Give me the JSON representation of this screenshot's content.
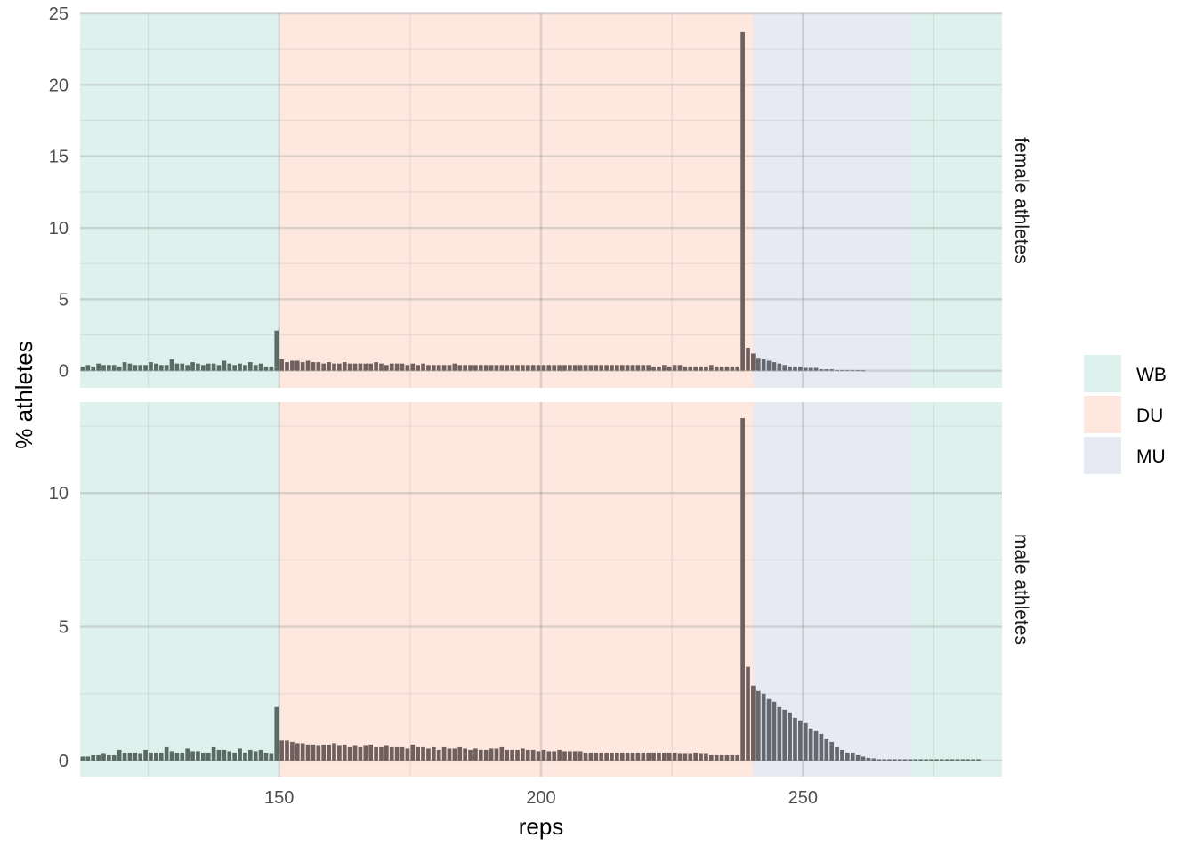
{
  "chart_data": {
    "type": "bar",
    "xlabel": "reps",
    "ylabel": "% athletes",
    "xlim": [
      112,
      288
    ],
    "x_ticks": [
      150,
      200,
      250
    ],
    "grid": true,
    "legend_position": "right",
    "bands": [
      {
        "name": "WB",
        "from": 112,
        "to": 150,
        "color": "#dff1ec"
      },
      {
        "name": "DU",
        "from": 150,
        "to": 240.5,
        "color": "#fde7df"
      },
      {
        "name": "MU",
        "from": 240.5,
        "to": 270.5,
        "color": "#e7eaf3"
      },
      {
        "name": "WB",
        "from": 270.5,
        "to": 288,
        "color": "#dff1ec"
      }
    ],
    "legend": [
      {
        "name": "WB",
        "color": "#dff1ec"
      },
      {
        "name": "DU",
        "color": "#fde7df"
      },
      {
        "name": "MU",
        "color": "#e7eaf3"
      }
    ],
    "bar_colors": {
      "WB": "#5a6b66",
      "DU": "#70605d",
      "MU": "#666870"
    },
    "panels": [
      {
        "label": "female athletes",
        "ylim": [
          -1.2,
          25
        ],
        "y_ticks": [
          0,
          5,
          10,
          15,
          20,
          25
        ],
        "x_start": 112,
        "values": [
          0.3,
          0.4,
          0.3,
          0.5,
          0.4,
          0.4,
          0.4,
          0.3,
          0.6,
          0.5,
          0.4,
          0.4,
          0.4,
          0.6,
          0.5,
          0.4,
          0.4,
          0.8,
          0.5,
          0.5,
          0.4,
          0.6,
          0.5,
          0.4,
          0.5,
          0.5,
          0.4,
          0.7,
          0.5,
          0.4,
          0.5,
          0.4,
          0.6,
          0.4,
          0.5,
          0.3,
          0.3,
          2.8,
          0.8,
          0.6,
          0.7,
          0.7,
          0.6,
          0.7,
          0.6,
          0.6,
          0.5,
          0.6,
          0.5,
          0.5,
          0.6,
          0.5,
          0.5,
          0.5,
          0.5,
          0.5,
          0.6,
          0.5,
          0.4,
          0.5,
          0.5,
          0.5,
          0.4,
          0.5,
          0.4,
          0.5,
          0.4,
          0.4,
          0.4,
          0.4,
          0.4,
          0.5,
          0.4,
          0.4,
          0.4,
          0.4,
          0.4,
          0.4,
          0.4,
          0.4,
          0.4,
          0.4,
          0.4,
          0.4,
          0.4,
          0.4,
          0.4,
          0.4,
          0.4,
          0.4,
          0.4,
          0.4,
          0.4,
          0.4,
          0.4,
          0.4,
          0.4,
          0.4,
          0.4,
          0.4,
          0.4,
          0.4,
          0.4,
          0.4,
          0.4,
          0.4,
          0.4,
          0.4,
          0.4,
          0.3,
          0.3,
          0.4,
          0.3,
          0.4,
          0.4,
          0.3,
          0.3,
          0.3,
          0.3,
          0.3,
          0.4,
          0.3,
          0.3,
          0.3,
          0.3,
          0.3,
          23.7,
          1.6,
          1.2,
          0.9,
          0.8,
          0.7,
          0.6,
          0.5,
          0.4,
          0.3,
          0.3,
          0.3,
          0.2,
          0.2,
          0.2,
          0.1,
          0.1,
          0.1,
          0.05,
          0.05,
          0.05,
          0.05,
          0.03,
          0.02
        ]
      },
      {
        "label": "male athletes",
        "ylim": [
          -0.6,
          13.4
        ],
        "y_ticks": [
          0,
          5,
          10
        ],
        "x_start": 112,
        "values": [
          0.15,
          0.15,
          0.2,
          0.2,
          0.25,
          0.2,
          0.2,
          0.4,
          0.3,
          0.3,
          0.3,
          0.25,
          0.4,
          0.3,
          0.3,
          0.3,
          0.5,
          0.35,
          0.3,
          0.3,
          0.45,
          0.35,
          0.35,
          0.3,
          0.3,
          0.5,
          0.4,
          0.4,
          0.35,
          0.3,
          0.45,
          0.3,
          0.4,
          0.35,
          0.4,
          0.3,
          0.25,
          2.0,
          0.75,
          0.75,
          0.7,
          0.65,
          0.65,
          0.6,
          0.6,
          0.55,
          0.6,
          0.6,
          0.65,
          0.55,
          0.6,
          0.5,
          0.55,
          0.5,
          0.55,
          0.6,
          0.5,
          0.5,
          0.55,
          0.5,
          0.5,
          0.5,
          0.45,
          0.6,
          0.5,
          0.5,
          0.45,
          0.5,
          0.4,
          0.5,
          0.45,
          0.45,
          0.5,
          0.45,
          0.4,
          0.45,
          0.4,
          0.4,
          0.45,
          0.45,
          0.5,
          0.4,
          0.4,
          0.4,
          0.45,
          0.4,
          0.4,
          0.35,
          0.4,
          0.35,
          0.35,
          0.4,
          0.35,
          0.35,
          0.35,
          0.35,
          0.3,
          0.3,
          0.3,
          0.3,
          0.3,
          0.3,
          0.3,
          0.3,
          0.3,
          0.3,
          0.3,
          0.3,
          0.3,
          0.3,
          0.3,
          0.3,
          0.3,
          0.3,
          0.25,
          0.25,
          0.25,
          0.3,
          0.25,
          0.25,
          0.2,
          0.2,
          0.2,
          0.2,
          0.2,
          0.2,
          12.8,
          3.5,
          2.8,
          2.6,
          2.5,
          2.3,
          2.2,
          2.0,
          1.9,
          1.8,
          1.6,
          1.5,
          1.4,
          1.2,
          1.1,
          1.0,
          0.8,
          0.7,
          0.5,
          0.4,
          0.3,
          0.3,
          0.2,
          0.15,
          0.1,
          0.08,
          0.05,
          0.05,
          0.05,
          0.05,
          0.05,
          0.05,
          0.05,
          0.05,
          0.05,
          0.05,
          0.05,
          0.05,
          0.05,
          0.05,
          0.05,
          0.05,
          0.05,
          0.05,
          0.05,
          0.05
        ]
      }
    ]
  }
}
